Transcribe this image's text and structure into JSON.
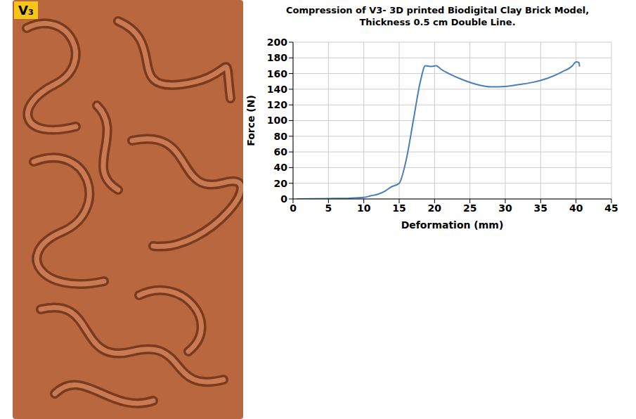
{
  "panel_label": "V₃",
  "chart_data": {
    "type": "line",
    "title": "Compression of V3- 3D printed Biodigital Clay Brick Model, Thickness 0.5 cm Double Line.",
    "x_label": "Deformation (mm)",
    "y_label": "Force (N)",
    "x": [
      0.5,
      5,
      8,
      10,
      11,
      12,
      13,
      13.8,
      15,
      16,
      17,
      18,
      18.7,
      19.5,
      20.2,
      21,
      22,
      24,
      26,
      28,
      30,
      32,
      34,
      36,
      38,
      39.5,
      40,
      40.4,
      40.5
    ],
    "values": [
      0,
      0.5,
      1,
      2,
      4,
      6,
      10,
      15,
      20,
      50,
      100,
      150,
      170,
      169,
      170,
      165,
      160,
      152,
      146,
      143,
      143.5,
      146,
      149,
      154,
      162,
      170,
      175,
      174,
      169
    ],
    "color": "#4a7ebb",
    "xlim": [
      0,
      45
    ],
    "xticks": [
      0,
      5,
      10,
      15,
      20,
      25,
      30,
      35,
      40,
      45
    ],
    "ylim": [
      0,
      200
    ],
    "yticks": [
      0,
      20,
      40,
      60,
      80,
      100,
      120,
      140,
      160,
      180,
      200
    ],
    "grid": true
  }
}
